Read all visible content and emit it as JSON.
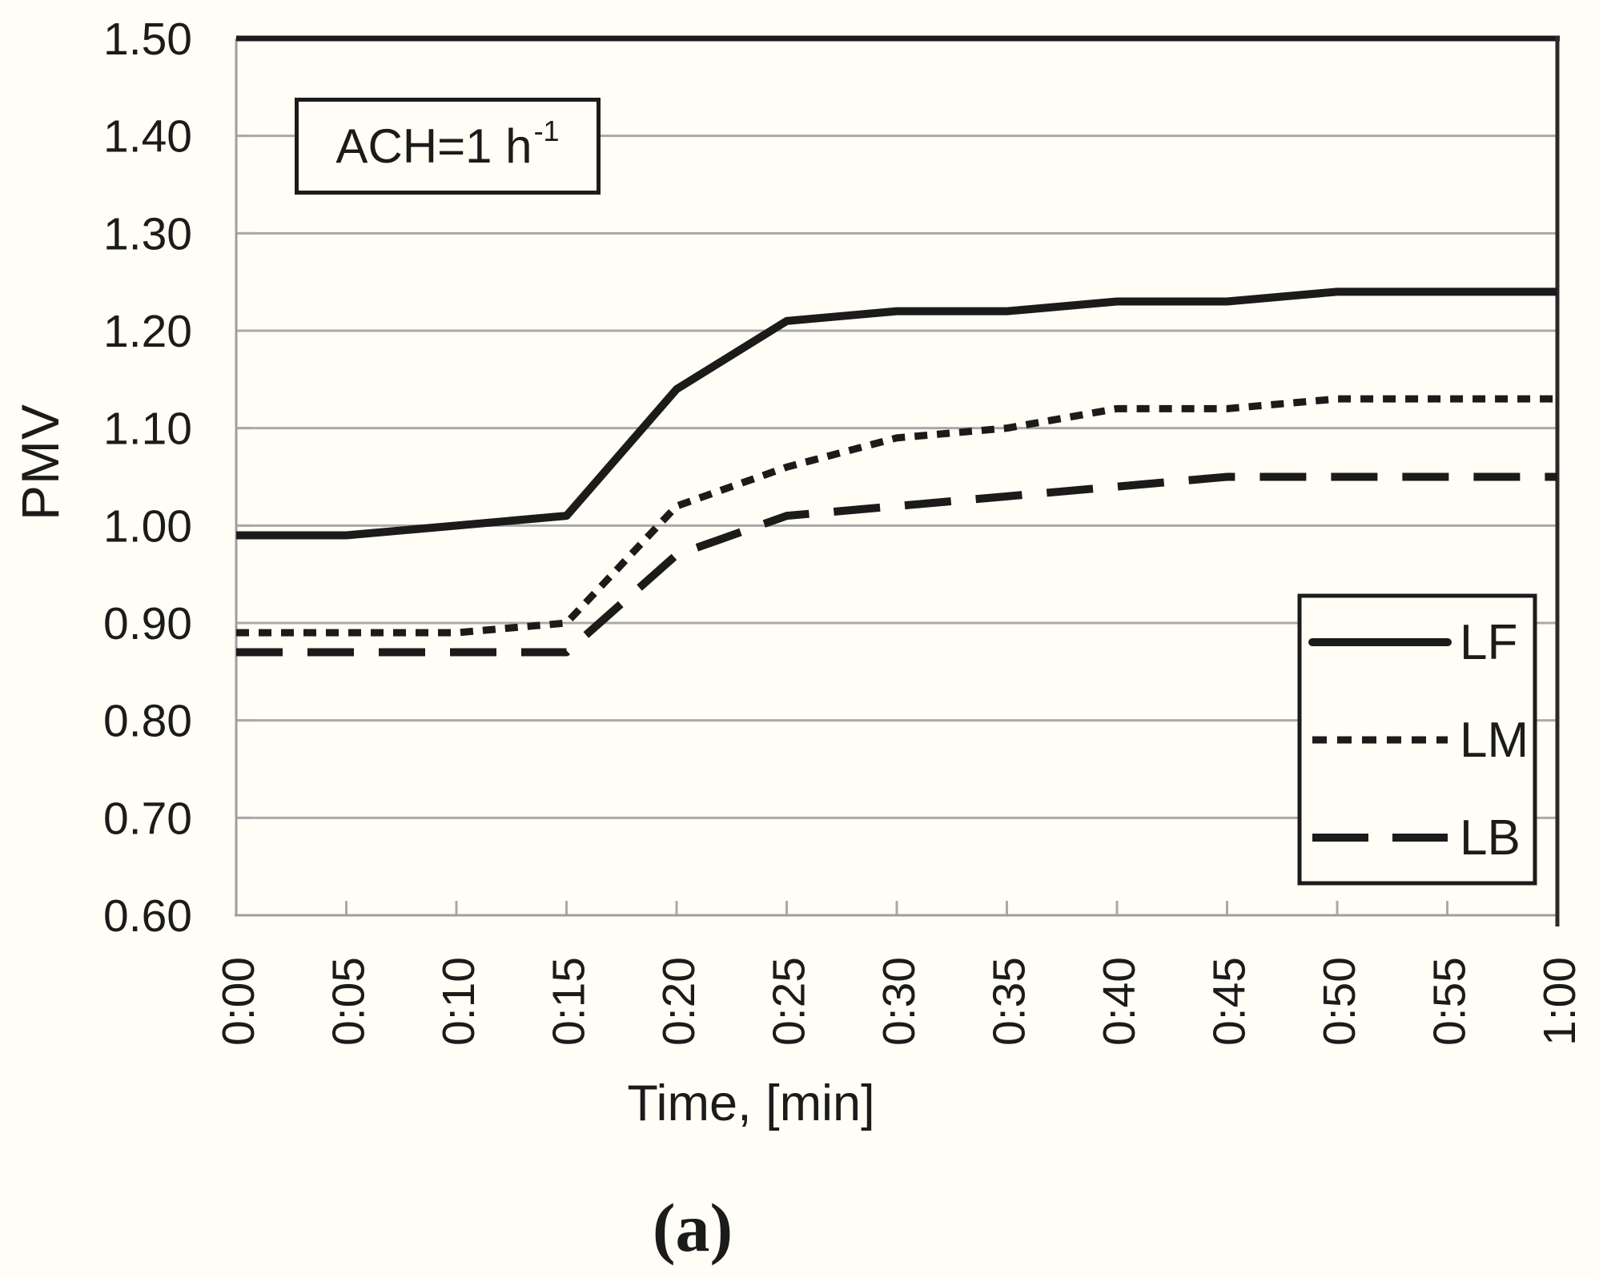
{
  "figure": {
    "background": "#fffdf6",
    "ink_color": "#1b1b19",
    "grid_color": "#a9a9a9",
    "axis_color": "#9e9e9e",
    "right_border_color": "#2a2a2a"
  },
  "y_axis": {
    "title": "PMV",
    "tick_labels": [
      "1.50",
      "1.40",
      "1.30",
      "1.20",
      "1.10",
      "1.00",
      "0.90",
      "0.80",
      "0.70",
      "0.60"
    ]
  },
  "x_axis": {
    "title": "Time, [min]"
  },
  "annotation": {
    "text": "ACH=1 h",
    "sup": "-1"
  },
  "caption": "(a)",
  "legend": {
    "entries": [
      "LF",
      "LM",
      "LB"
    ]
  },
  "chart_data": {
    "type": "line",
    "title": "",
    "xlabel": "Time, [min]",
    "ylabel": "PMV",
    "ylim": [
      0.6,
      1.5
    ],
    "ytick_step": 0.1,
    "grid": "horizontal gridlines on",
    "legend_position": "inside lower right",
    "categories": [
      "0:00",
      "0:05",
      "0:10",
      "0:15",
      "0:20",
      "0:25",
      "0:30",
      "0:35",
      "0:40",
      "0:45",
      "0:50",
      "0:55",
      "1:00"
    ],
    "series": [
      {
        "name": "LF",
        "style": "solid",
        "values": [
          0.99,
          0.99,
          1.0,
          1.01,
          1.14,
          1.21,
          1.22,
          1.22,
          1.23,
          1.23,
          1.24,
          1.24,
          1.24
        ]
      },
      {
        "name": "LM",
        "style": "dashed-short",
        "values": [
          0.89,
          0.89,
          0.89,
          0.9,
          1.02,
          1.06,
          1.09,
          1.1,
          1.12,
          1.12,
          1.13,
          1.13,
          1.13
        ]
      },
      {
        "name": "LB",
        "style": "dashed-long",
        "values": [
          0.87,
          0.87,
          0.87,
          0.87,
          0.97,
          1.01,
          1.02,
          1.03,
          1.04,
          1.05,
          1.05,
          1.05,
          1.05
        ]
      }
    ],
    "annotation": "ACH=1 h-1"
  }
}
